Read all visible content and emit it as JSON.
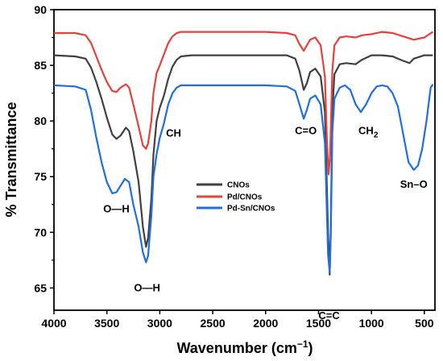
{
  "chart_data": {
    "type": "line",
    "title": "",
    "xlabel": "Wavenumber (cm",
    "xlabel_sup": "−1",
    "xlabel_end": ")",
    "ylabel": "% Transmittance",
    "xlim": [
      4000,
      400
    ],
    "ylim": [
      63,
      90
    ],
    "x_reversed": true,
    "grid": false,
    "legend_position": "center",
    "xticks": [
      4000,
      3500,
      3000,
      2500,
      2000,
      1500,
      1000,
      500
    ],
    "yticks": [
      65,
      70,
      75,
      80,
      85,
      90
    ],
    "series": [
      {
        "name": "CNOs",
        "color": "#404040",
        "points": [
          [
            4000,
            85.9
          ],
          [
            3800,
            85.8
          ],
          [
            3700,
            85.6
          ],
          [
            3650,
            84.8
          ],
          [
            3600,
            83.5
          ],
          [
            3550,
            82
          ],
          [
            3500,
            80.3
          ],
          [
            3450,
            78.8
          ],
          [
            3410,
            78.4
          ],
          [
            3370,
            78.7
          ],
          [
            3320,
            79.4
          ],
          [
            3290,
            79.1
          ],
          [
            3250,
            77.3
          ],
          [
            3200,
            74.5
          ],
          [
            3160,
            70.5
          ],
          [
            3130,
            68.7
          ],
          [
            3110,
            69.5
          ],
          [
            3080,
            73
          ],
          [
            3060,
            77
          ],
          [
            3030,
            80
          ],
          [
            3000,
            81.2
          ],
          [
            2960,
            82.3
          ],
          [
            2920,
            83.8
          ],
          [
            2880,
            84.9
          ],
          [
            2840,
            85.5
          ],
          [
            2800,
            85.8
          ],
          [
            2700,
            85.9
          ],
          [
            2500,
            85.9
          ],
          [
            2200,
            85.9
          ],
          [
            1800,
            85.9
          ],
          [
            1720,
            85.6
          ],
          [
            1680,
            84.5
          ],
          [
            1640,
            82.8
          ],
          [
            1610,
            83.4
          ],
          [
            1580,
            84.4
          ],
          [
            1530,
            84.7
          ],
          [
            1480,
            84
          ],
          [
            1440,
            80.8
          ],
          [
            1410,
            70
          ],
          [
            1395,
            66.2
          ],
          [
            1385,
            70
          ],
          [
            1370,
            80.8
          ],
          [
            1350,
            84.2
          ],
          [
            1300,
            85.1
          ],
          [
            1240,
            85.2
          ],
          [
            1150,
            85.1
          ],
          [
            1090,
            85.5
          ],
          [
            1000,
            85.9
          ],
          [
            900,
            85.9
          ],
          [
            800,
            85.8
          ],
          [
            700,
            85.4
          ],
          [
            640,
            85.2
          ],
          [
            600,
            85.6
          ],
          [
            500,
            85.9
          ],
          [
            420,
            85.9
          ]
        ]
      },
      {
        "name": "Pd/CNOs",
        "color": "#e8403c",
        "points": [
          [
            4000,
            87.9
          ],
          [
            3800,
            87.9
          ],
          [
            3700,
            87.7
          ],
          [
            3650,
            87
          ],
          [
            3600,
            85.8
          ],
          [
            3550,
            84.6
          ],
          [
            3500,
            83.5
          ],
          [
            3450,
            82.7
          ],
          [
            3410,
            82.6
          ],
          [
            3370,
            83
          ],
          [
            3320,
            83.3
          ],
          [
            3290,
            83
          ],
          [
            3250,
            81.5
          ],
          [
            3200,
            79.5
          ],
          [
            3160,
            77.8
          ],
          [
            3130,
            77.5
          ],
          [
            3110,
            78
          ],
          [
            3080,
            80
          ],
          [
            3060,
            82.5
          ],
          [
            3030,
            84.3
          ],
          [
            3000,
            85
          ],
          [
            2960,
            86
          ],
          [
            2920,
            87
          ],
          [
            2880,
            87.6
          ],
          [
            2840,
            87.9
          ],
          [
            2800,
            88
          ],
          [
            2500,
            88
          ],
          [
            2000,
            88
          ],
          [
            1800,
            87.9
          ],
          [
            1720,
            87.7
          ],
          [
            1680,
            86.9
          ],
          [
            1640,
            86.3
          ],
          [
            1610,
            86.8
          ],
          [
            1580,
            87.3
          ],
          [
            1530,
            87.5
          ],
          [
            1480,
            86.8
          ],
          [
            1440,
            84
          ],
          [
            1420,
            78
          ],
          [
            1405,
            75.2
          ],
          [
            1390,
            77
          ],
          [
            1370,
            84.5
          ],
          [
            1350,
            86.8
          ],
          [
            1300,
            87.5
          ],
          [
            1240,
            87.6
          ],
          [
            1150,
            87.5
          ],
          [
            1090,
            87.7
          ],
          [
            1000,
            87.8
          ],
          [
            900,
            88
          ],
          [
            800,
            87.9
          ],
          [
            700,
            87.6
          ],
          [
            600,
            87.3
          ],
          [
            500,
            87.5
          ],
          [
            420,
            88
          ]
        ]
      },
      {
        "name": "Pd-Sn/CNOs",
        "color": "#1e6fe0",
        "points": [
          [
            4000,
            83.2
          ],
          [
            3800,
            83.1
          ],
          [
            3700,
            82.8
          ],
          [
            3650,
            81
          ],
          [
            3600,
            78.5
          ],
          [
            3550,
            76.3
          ],
          [
            3500,
            74.5
          ],
          [
            3450,
            73.5
          ],
          [
            3410,
            73.6
          ],
          [
            3370,
            74.2
          ],
          [
            3330,
            74.8
          ],
          [
            3290,
            74.5
          ],
          [
            3250,
            72.5
          ],
          [
            3200,
            70.5
          ],
          [
            3160,
            68.2
          ],
          [
            3130,
            67.3
          ],
          [
            3110,
            67.9
          ],
          [
            3080,
            71.5
          ],
          [
            3060,
            75
          ],
          [
            3030,
            77
          ],
          [
            3000,
            78.5
          ],
          [
            2960,
            79.8
          ],
          [
            2920,
            81.5
          ],
          [
            2880,
            82.5
          ],
          [
            2840,
            83
          ],
          [
            2800,
            83.2
          ],
          [
            2500,
            83.2
          ],
          [
            2000,
            83.2
          ],
          [
            1800,
            83.1
          ],
          [
            1720,
            82.7
          ],
          [
            1680,
            81.5
          ],
          [
            1640,
            80.2
          ],
          [
            1610,
            81
          ],
          [
            1580,
            82
          ],
          [
            1530,
            82.3
          ],
          [
            1480,
            81.5
          ],
          [
            1440,
            78
          ],
          [
            1410,
            68
          ],
          [
            1395,
            66.4
          ],
          [
            1385,
            69.5
          ],
          [
            1370,
            79
          ],
          [
            1350,
            82
          ],
          [
            1300,
            83
          ],
          [
            1250,
            83.2
          ],
          [
            1200,
            82.8
          ],
          [
            1150,
            81.5
          ],
          [
            1100,
            80.8
          ],
          [
            1050,
            81.5
          ],
          [
            1000,
            82.5
          ],
          [
            950,
            83.1
          ],
          [
            900,
            83.2
          ],
          [
            850,
            83.1
          ],
          [
            800,
            82.5
          ],
          [
            750,
            81.3
          ],
          [
            700,
            78.8
          ],
          [
            650,
            76.3
          ],
          [
            600,
            75.6
          ],
          [
            560,
            76
          ],
          [
            520,
            77.5
          ],
          [
            480,
            80
          ],
          [
            440,
            83
          ],
          [
            420,
            83.3
          ]
        ]
      }
    ],
    "annotations": [
      {
        "text": "O—H",
        "x": 3410,
        "y": 71.8
      },
      {
        "text": "O—H",
        "x": 3120,
        "y": 64.7
      },
      {
        "text": "CH",
        "x": 2870,
        "y": 78.6
      },
      {
        "text": "C=O",
        "x": 1620,
        "y": 78.8
      },
      {
        "text": "CH",
        "sub": "2",
        "x": 1030,
        "y": 78.8
      },
      {
        "text": "C=C",
        "x": 1400,
        "y": 62.2
      },
      {
        "text": "Sn–O",
        "x": 600,
        "y": 74
      }
    ]
  }
}
